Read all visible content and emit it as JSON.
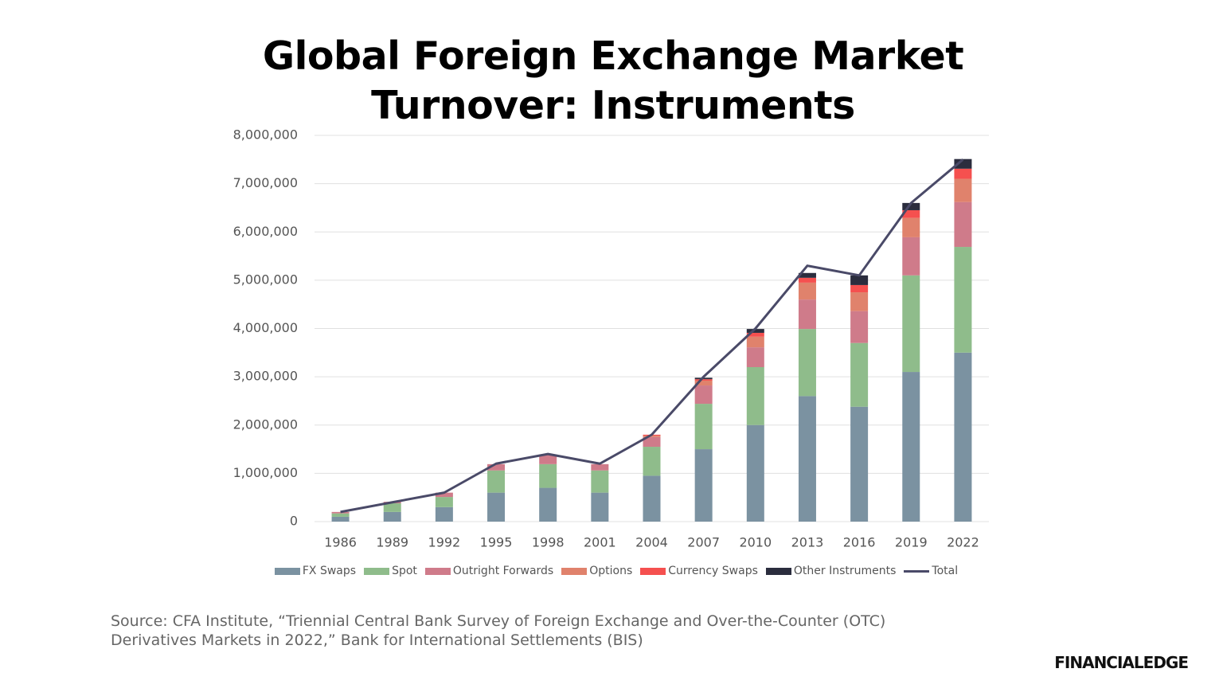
{
  "chart_data": {
    "type": "bar",
    "stacked": true,
    "title": "Global Foreign Exchange Market Turnover: Instruments",
    "categories": [
      "1986",
      "1989",
      "1992",
      "1995",
      "1998",
      "2001",
      "2004",
      "2007",
      "2010",
      "2013",
      "2016",
      "2019",
      "2022"
    ],
    "series": [
      {
        "name": "FX Swaps",
        "color": "#7b92a1",
        "values": [
          100000,
          200000,
          300000,
          600000,
          700000,
          600000,
          950000,
          1500000,
          2000000,
          2600000,
          2380000,
          3100000,
          3500000
        ]
      },
      {
        "name": "Spot",
        "color": "#8fbc8b",
        "values": [
          70000,
          180000,
          210000,
          460000,
          490000,
          460000,
          600000,
          940000,
          1200000,
          1390000,
          1320000,
          2000000,
          2190000
        ]
      },
      {
        "name": "Outright Forwards",
        "color": "#cf7b8a",
        "values": [
          30000,
          30000,
          90000,
          130000,
          200000,
          130000,
          200000,
          380000,
          410000,
          610000,
          660000,
          790000,
          930000
        ]
      },
      {
        "name": "Options",
        "color": "#e0826c",
        "values": [
          0,
          0,
          0,
          0,
          0,
          0,
          30000,
          100000,
          220000,
          350000,
          390000,
          400000,
          480000
        ]
      },
      {
        "name": "Currency Swaps",
        "color": "#f5504f",
        "values": [
          0,
          0,
          0,
          0,
          0,
          0,
          20000,
          30000,
          80000,
          100000,
          150000,
          160000,
          210000
        ]
      },
      {
        "name": "Other Instruments",
        "color": "#2b2d3e",
        "values": [
          0,
          0,
          0,
          0,
          0,
          0,
          0,
          30000,
          80000,
          100000,
          200000,
          150000,
          200000
        ]
      },
      {
        "name": "Total",
        "color": "#4a4a68",
        "kind": "line",
        "values": [
          200000,
          400000,
          600000,
          1200000,
          1400000,
          1200000,
          1800000,
          3000000,
          4000000,
          5300000,
          5100000,
          6600000,
          7500000
        ]
      }
    ],
    "ylim": [
      0,
      8000000
    ],
    "yticks": [
      0,
      {
        "value": 1000000,
        "label": "1,000,000"
      },
      {
        "value": 2000000,
        "label": "2,000,000"
      },
      {
        "value": 3000000,
        "label": "3,000,000"
      },
      {
        "value": 4000000,
        "label": "4,000,000"
      },
      {
        "value": 5000000,
        "label": "5,000,000"
      },
      {
        "value": 6000000,
        "label": "6,000,000"
      },
      {
        "value": 7000000,
        "label": "7,000,000"
      },
      {
        "value": 8000000,
        "label": "8,000,000"
      }
    ],
    "grid": true,
    "legend": "bottom",
    "source": "Source: CFA Institute, “Triennial Central Bank Survey of Foreign Exchange and Over-the-Counter (OTC) Derivatives Markets in 2022,” Bank for International Settlements (BIS)",
    "logo": "FINANCIALEDGE"
  }
}
